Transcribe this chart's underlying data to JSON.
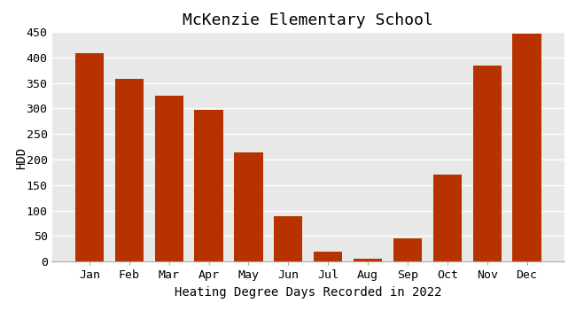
{
  "title": "McKenzie Elementary School",
  "xlabel": "Heating Degree Days Recorded in 2022",
  "ylabel": "HDD",
  "categories": [
    "Jan",
    "Feb",
    "Mar",
    "Apr",
    "May",
    "Jun",
    "Jul",
    "Aug",
    "Sep",
    "Oct",
    "Nov",
    "Dec"
  ],
  "values": [
    408,
    358,
    325,
    298,
    214,
    89,
    20,
    6,
    46,
    170,
    384,
    447
  ],
  "bar_color": "#b83200",
  "ylim": [
    0,
    450
  ],
  "yticks": [
    0,
    50,
    100,
    150,
    200,
    250,
    300,
    350,
    400,
    450
  ],
  "plot_bg_color": "#e8e8e8",
  "fig_bg_color": "#ffffff",
  "grid_color": "#ffffff",
  "title_fontsize": 13,
  "label_fontsize": 10,
  "tick_fontsize": 9.5
}
